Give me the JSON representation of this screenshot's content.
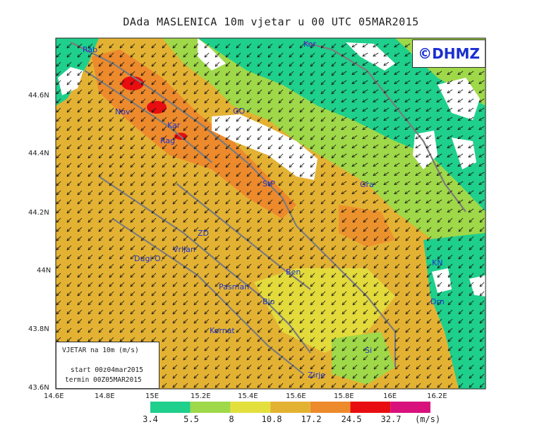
{
  "title": "DAda MASLENICA 10m vjetar u 00 UTC 05MAR2015",
  "credit": "©DHMZ",
  "legend_box": {
    "line1": "VJETAR na 10m (m/s)",
    "line2": "start 00z04mar2015",
    "line3": "termin 00Z05MAR2015"
  },
  "map": {
    "lon_ticks": [
      "14.6E",
      "14.8E",
      "15E",
      "15.2E",
      "15.4E",
      "15.6E",
      "15.8E",
      "16E",
      "16.2E"
    ],
    "lat_ticks": [
      "43.6N",
      "43.8N",
      "44N",
      "44.2N",
      "44.4N",
      "44.6N"
    ],
    "places": [
      {
        "name": "Rab"
      },
      {
        "name": "Kor"
      },
      {
        "name": "Nov"
      },
      {
        "name": "Kar"
      },
      {
        "name": "Rag"
      },
      {
        "name": "GO"
      },
      {
        "name": "StP"
      },
      {
        "name": "Gra"
      },
      {
        "name": "ZD"
      },
      {
        "name": "Vrljan"
      },
      {
        "name": "Dugi O."
      },
      {
        "name": "Ben"
      },
      {
        "name": "KN"
      },
      {
        "name": "Pasman"
      },
      {
        "name": "Bio"
      },
      {
        "name": "Drn"
      },
      {
        "name": "Kornat"
      },
      {
        "name": "Si"
      },
      {
        "name": "Zirje"
      }
    ]
  },
  "colorbar": {
    "colors": [
      "#1fcf8c",
      "#9fd848",
      "#e3e03e",
      "#e4b233",
      "#ed8a2c",
      "#e80d10",
      "#d8117c"
    ],
    "labels": [
      "3.4",
      "5.5",
      "8",
      "10.8",
      "17.2",
      "24.5",
      "32.7"
    ],
    "unit": "(m/s)"
  }
}
